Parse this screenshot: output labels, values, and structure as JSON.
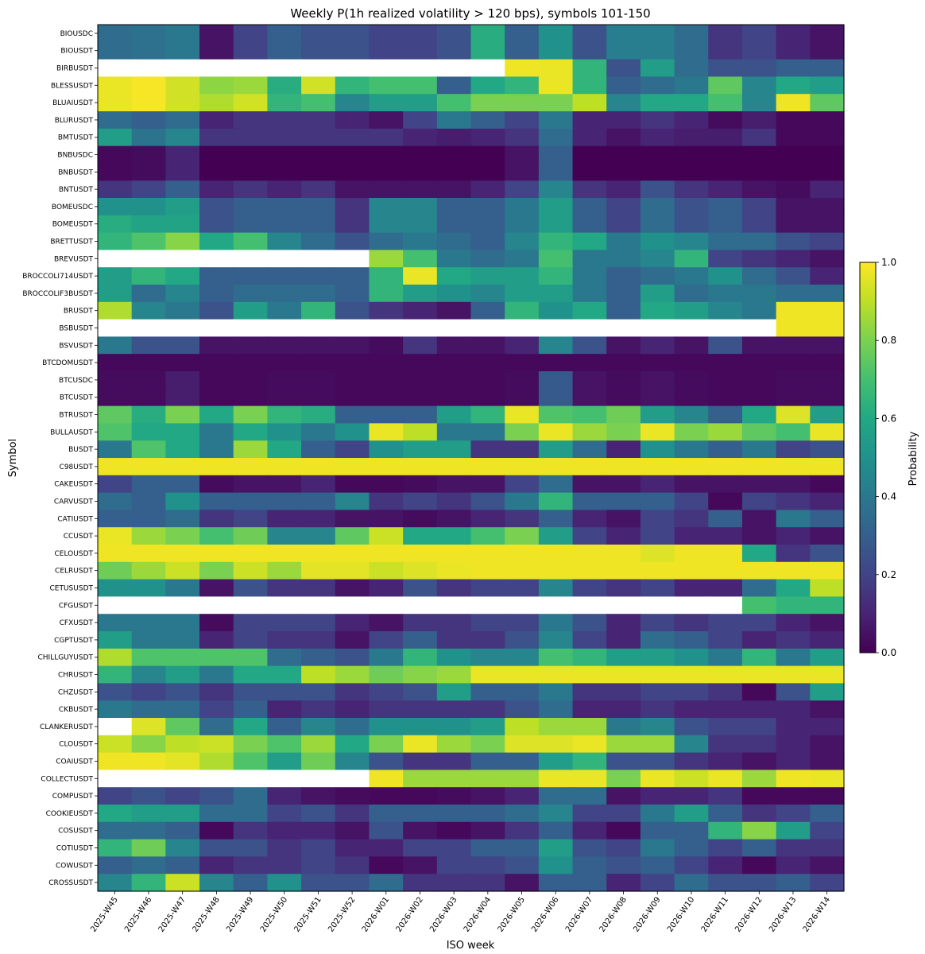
{
  "chart_data": {
    "type": "heatmap",
    "title": "Weekly P(1h realized volatility > 120 bps), symbols 101-150",
    "xlabel": "ISO week",
    "ylabel": "Symbol",
    "colorbar_label": "Probability",
    "colorbar_ticks": [
      "0.0",
      "0.2",
      "0.4",
      "0.6",
      "0.8",
      "1.0"
    ],
    "vmin": 0.0,
    "vmax": 1.0,
    "colormap": "viridis",
    "missing_color": "#ffffff",
    "x": [
      "2025-W45",
      "2025-W46",
      "2025-W47",
      "2025-W48",
      "2025-W49",
      "2025-W50",
      "2025-W51",
      "2025-W52",
      "2026-W01",
      "2026-W02",
      "2026-W03",
      "2026-W04",
      "2026-W05",
      "2026-W06",
      "2026-W07",
      "2026-W08",
      "2026-W09",
      "2026-W10",
      "2026-W11",
      "2026-W12",
      "2026-W13",
      "2026-W14"
    ],
    "y": [
      "BIOUSDC",
      "BIOUSDT",
      "BIRBUSDT",
      "BLESSUSDT",
      "BLUAIUSDT",
      "BLURUSDT",
      "BMTUSDT",
      "BNBUSDC",
      "BNBUSDT",
      "BNTUSDT",
      "BOMEUSDC",
      "BOMEUSDT",
      "BRETTUSDT",
      "BREVUSDT",
      "BROCCOLI714USDT",
      "BROCCOLIF3BUSDT",
      "BRUSDT",
      "BSBUSDT",
      "BSVUSDT",
      "BTCDOMUSDT",
      "BTCUSDC",
      "BTCUSDT",
      "BTRUSDT",
      "BULLAUSDT",
      "BUSDT",
      "C98USDT",
      "CAKEUSDT",
      "CARVUSDT",
      "CATIUSDT",
      "CCUSDT",
      "CELOUSDT",
      "CELRUSDT",
      "CETUSUSDT",
      "CFGUSDT",
      "CFXUSDT",
      "CGPTUSDT",
      "CHILLGUYUSDT",
      "CHRUSDT",
      "CHZUSDT",
      "CKBUSDT",
      "CLANKERUSDT",
      "CLOUSDT",
      "COAIUSDT",
      "COLLECTUSDT",
      "COMPUSDT",
      "COOKIEUSDT",
      "COSUSDT",
      "COTIUSDT",
      "COWUSDT",
      "CROSSUSDT"
    ],
    "values": [
      [
        0.35,
        0.37,
        0.4,
        0.05,
        0.2,
        0.3,
        0.25,
        0.25,
        0.2,
        0.2,
        0.25,
        0.62,
        0.3,
        0.5,
        0.25,
        0.42,
        0.42,
        0.35,
        0.15,
        0.2,
        0.1,
        0.05
      ],
      [
        0.35,
        0.37,
        0.4,
        0.05,
        0.2,
        0.3,
        0.25,
        0.25,
        0.2,
        0.2,
        0.25,
        0.62,
        0.3,
        0.5,
        0.25,
        0.42,
        0.42,
        0.35,
        0.15,
        0.2,
        0.1,
        0.05
      ],
      [
        null,
        null,
        null,
        null,
        null,
        null,
        null,
        null,
        null,
        null,
        null,
        null,
        0.98,
        0.97,
        0.65,
        0.25,
        0.55,
        0.35,
        0.25,
        0.25,
        0.3,
        0.3
      ],
      [
        0.97,
        0.99,
        0.93,
        0.83,
        0.85,
        0.62,
        0.93,
        0.65,
        0.7,
        0.7,
        0.3,
        0.6,
        0.65,
        0.97,
        0.65,
        0.3,
        0.35,
        0.4,
        0.75,
        0.45,
        0.6,
        0.55
      ],
      [
        0.97,
        0.99,
        0.93,
        0.88,
        0.93,
        0.65,
        0.7,
        0.45,
        0.55,
        0.55,
        0.7,
        0.8,
        0.8,
        0.8,
        0.9,
        0.45,
        0.6,
        0.6,
        0.7,
        0.45,
        0.98,
        0.75
      ],
      [
        0.35,
        0.3,
        0.35,
        0.1,
        0.15,
        0.15,
        0.15,
        0.1,
        0.05,
        0.2,
        0.4,
        0.3,
        0.2,
        0.4,
        0.1,
        0.1,
        0.15,
        0.1,
        0.03,
        0.08,
        0.02,
        0.02
      ],
      [
        0.55,
        0.38,
        0.45,
        0.15,
        0.15,
        0.15,
        0.15,
        0.15,
        0.15,
        0.1,
        0.08,
        0.1,
        0.15,
        0.35,
        0.1,
        0.05,
        0.1,
        0.08,
        0.08,
        0.15,
        0.02,
        0.02
      ],
      [
        0.02,
        0.03,
        0.1,
        0.0,
        0.0,
        0.0,
        0.0,
        0.0,
        0.0,
        0.0,
        0.0,
        0.0,
        0.05,
        0.3,
        0.0,
        0.0,
        0.0,
        0.0,
        0.0,
        0.0,
        0.0,
        0.0
      ],
      [
        0.02,
        0.03,
        0.1,
        0.0,
        0.0,
        0.0,
        0.0,
        0.0,
        0.0,
        0.0,
        0.0,
        0.0,
        0.05,
        0.3,
        0.0,
        0.0,
        0.0,
        0.0,
        0.0,
        0.0,
        0.0,
        0.0
      ],
      [
        0.15,
        0.2,
        0.3,
        0.1,
        0.15,
        0.1,
        0.15,
        0.05,
        0.05,
        0.05,
        0.05,
        0.1,
        0.2,
        0.45,
        0.15,
        0.1,
        0.25,
        0.15,
        0.1,
        0.05,
        0.03,
        0.1
      ],
      [
        0.5,
        0.5,
        0.55,
        0.25,
        0.3,
        0.3,
        0.3,
        0.15,
        0.45,
        0.45,
        0.3,
        0.3,
        0.4,
        0.55,
        0.3,
        0.2,
        0.35,
        0.25,
        0.3,
        0.2,
        0.05,
        0.05
      ],
      [
        0.62,
        0.58,
        0.58,
        0.25,
        0.3,
        0.3,
        0.3,
        0.15,
        0.45,
        0.45,
        0.3,
        0.3,
        0.4,
        0.55,
        0.3,
        0.2,
        0.35,
        0.25,
        0.3,
        0.2,
        0.05,
        0.05
      ],
      [
        0.65,
        0.72,
        0.82,
        0.6,
        0.7,
        0.45,
        0.35,
        0.25,
        0.35,
        0.4,
        0.35,
        0.3,
        0.45,
        0.65,
        0.6,
        0.4,
        0.5,
        0.45,
        0.35,
        0.35,
        0.25,
        0.2
      ],
      [
        null,
        null,
        null,
        null,
        null,
        null,
        null,
        null,
        0.85,
        0.7,
        0.4,
        0.35,
        0.4,
        0.7,
        0.4,
        0.4,
        0.45,
        0.65,
        0.2,
        0.15,
        0.1,
        0.05
      ],
      [
        0.55,
        0.65,
        0.6,
        0.3,
        0.3,
        0.3,
        0.3,
        0.3,
        0.65,
        0.97,
        0.6,
        0.55,
        0.55,
        0.65,
        0.4,
        0.3,
        0.35,
        0.4,
        0.5,
        0.35,
        0.25,
        0.1
      ],
      [
        0.55,
        0.35,
        0.45,
        0.3,
        0.35,
        0.35,
        0.35,
        0.3,
        0.65,
        0.55,
        0.5,
        0.45,
        0.55,
        0.55,
        0.4,
        0.3,
        0.55,
        0.35,
        0.4,
        0.4,
        0.35,
        0.35
      ],
      [
        0.88,
        0.45,
        0.4,
        0.25,
        0.55,
        0.4,
        0.65,
        0.25,
        0.15,
        0.1,
        0.05,
        0.3,
        0.65,
        0.5,
        0.6,
        0.3,
        0.6,
        0.55,
        0.45,
        0.4,
        0.98,
        0.98
      ],
      [
        null,
        null,
        null,
        null,
        null,
        null,
        null,
        null,
        null,
        null,
        null,
        null,
        null,
        null,
        null,
        null,
        null,
        null,
        null,
        null,
        0.98,
        0.98
      ],
      [
        0.4,
        0.25,
        0.25,
        0.05,
        0.05,
        0.05,
        0.05,
        0.05,
        0.03,
        0.15,
        0.05,
        0.05,
        0.1,
        0.45,
        0.25,
        0.05,
        0.1,
        0.05,
        0.25,
        0.05,
        0.05,
        0.05
      ],
      [
        0.02,
        0.02,
        0.02,
        0.02,
        0.02,
        0.02,
        0.02,
        0.02,
        0.02,
        0.02,
        0.02,
        0.02,
        0.02,
        0.02,
        0.02,
        0.02,
        0.02,
        0.02,
        0.02,
        0.02,
        0.02,
        0.02
      ],
      [
        0.03,
        0.03,
        0.08,
        0.02,
        0.02,
        0.03,
        0.03,
        0.02,
        0.02,
        0.02,
        0.02,
        0.02,
        0.03,
        0.28,
        0.05,
        0.03,
        0.05,
        0.03,
        0.02,
        0.02,
        0.03,
        0.03
      ],
      [
        0.03,
        0.03,
        0.08,
        0.02,
        0.02,
        0.03,
        0.03,
        0.02,
        0.02,
        0.02,
        0.02,
        0.02,
        0.03,
        0.28,
        0.05,
        0.03,
        0.05,
        0.03,
        0.02,
        0.02,
        0.03,
        0.03
      ],
      [
        0.75,
        0.62,
        0.8,
        0.6,
        0.8,
        0.65,
        0.62,
        0.3,
        0.3,
        0.3,
        0.55,
        0.65,
        0.97,
        0.72,
        0.7,
        0.78,
        0.55,
        0.45,
        0.3,
        0.6,
        0.95,
        0.55
      ],
      [
        0.72,
        0.6,
        0.6,
        0.4,
        0.6,
        0.5,
        0.4,
        0.5,
        0.97,
        0.9,
        0.4,
        0.4,
        0.8,
        0.97,
        0.85,
        0.8,
        0.97,
        0.8,
        0.85,
        0.75,
        0.7,
        0.97
      ],
      [
        0.4,
        0.72,
        0.6,
        0.4,
        0.85,
        0.6,
        0.3,
        0.2,
        0.5,
        0.55,
        0.55,
        0.15,
        0.15,
        0.55,
        0.35,
        0.1,
        0.5,
        0.4,
        0.3,
        0.4,
        0.2,
        0.25
      ],
      [
        0.98,
        0.98,
        0.98,
        0.98,
        0.98,
        0.98,
        0.98,
        0.98,
        0.98,
        0.98,
        0.98,
        0.98,
        0.98,
        0.98,
        0.98,
        0.98,
        0.98,
        0.98,
        0.98,
        0.98,
        0.98,
        0.98
      ],
      [
        0.2,
        0.3,
        0.3,
        0.03,
        0.05,
        0.05,
        0.1,
        0.02,
        0.02,
        0.03,
        0.05,
        0.05,
        0.2,
        0.35,
        0.05,
        0.05,
        0.1,
        0.05,
        0.05,
        0.05,
        0.05,
        0.02
      ],
      [
        0.35,
        0.3,
        0.5,
        0.3,
        0.3,
        0.3,
        0.3,
        0.45,
        0.15,
        0.2,
        0.15,
        0.25,
        0.4,
        0.65,
        0.3,
        0.3,
        0.3,
        0.2,
        0.02,
        0.2,
        0.15,
        0.1
      ],
      [
        0.3,
        0.3,
        0.35,
        0.15,
        0.2,
        0.1,
        0.1,
        0.05,
        0.05,
        0.03,
        0.05,
        0.1,
        0.15,
        0.3,
        0.1,
        0.05,
        0.2,
        0.15,
        0.3,
        0.05,
        0.4,
        0.3
      ],
      [
        0.97,
        0.85,
        0.8,
        0.7,
        0.78,
        0.45,
        0.45,
        0.75,
        0.92,
        0.6,
        0.6,
        0.7,
        0.8,
        0.55,
        0.2,
        0.1,
        0.2,
        0.1,
        0.1,
        0.05,
        0.1,
        0.05
      ],
      [
        0.98,
        0.98,
        0.98,
        0.98,
        0.98,
        0.98,
        0.98,
        0.98,
        0.98,
        0.98,
        0.98,
        0.98,
        0.98,
        0.98,
        0.98,
        0.98,
        0.95,
        0.98,
        0.98,
        0.6,
        0.15,
        0.25
      ],
      [
        0.78,
        0.85,
        0.92,
        0.8,
        0.92,
        0.85,
        0.96,
        0.96,
        0.92,
        0.95,
        0.97,
        0.98,
        0.98,
        0.98,
        0.98,
        0.98,
        0.98,
        0.98,
        0.98,
        0.98,
        0.98,
        0.98
      ],
      [
        0.5,
        0.5,
        0.4,
        0.05,
        0.25,
        0.15,
        0.15,
        0.05,
        0.1,
        0.25,
        0.15,
        0.2,
        0.2,
        0.45,
        0.2,
        0.15,
        0.2,
        0.1,
        0.1,
        0.35,
        0.6,
        0.9
      ],
      [
        null,
        null,
        null,
        null,
        null,
        null,
        null,
        null,
        null,
        null,
        null,
        null,
        null,
        null,
        null,
        null,
        null,
        null,
        null,
        0.7,
        0.65,
        0.65
      ],
      [
        0.4,
        0.4,
        0.4,
        0.03,
        0.2,
        0.2,
        0.2,
        0.1,
        0.05,
        0.15,
        0.15,
        0.2,
        0.2,
        0.4,
        0.25,
        0.1,
        0.2,
        0.15,
        0.2,
        0.2,
        0.1,
        0.05
      ],
      [
        0.55,
        0.4,
        0.4,
        0.1,
        0.2,
        0.15,
        0.15,
        0.05,
        0.2,
        0.3,
        0.15,
        0.15,
        0.25,
        0.45,
        0.2,
        0.1,
        0.35,
        0.3,
        0.2,
        0.1,
        0.15,
        0.1
      ],
      [
        0.88,
        0.72,
        0.72,
        0.72,
        0.72,
        0.35,
        0.3,
        0.25,
        0.4,
        0.65,
        0.5,
        0.45,
        0.45,
        0.7,
        0.65,
        0.55,
        0.55,
        0.5,
        0.4,
        0.65,
        0.4,
        0.55
      ],
      [
        0.65,
        0.45,
        0.55,
        0.4,
        0.6,
        0.6,
        0.9,
        0.85,
        0.78,
        0.82,
        0.85,
        0.97,
        0.97,
        0.97,
        0.97,
        0.97,
        0.97,
        0.97,
        0.97,
        0.97,
        0.97,
        0.97
      ],
      [
        0.25,
        0.2,
        0.25,
        0.15,
        0.25,
        0.25,
        0.25,
        0.15,
        0.2,
        0.25,
        0.55,
        0.3,
        0.3,
        0.4,
        0.15,
        0.15,
        0.2,
        0.2,
        0.15,
        0.02,
        0.25,
        0.55
      ],
      [
        0.4,
        0.35,
        0.35,
        0.2,
        0.3,
        0.1,
        0.15,
        0.1,
        0.15,
        0.15,
        0.15,
        0.15,
        0.25,
        0.35,
        0.1,
        0.1,
        0.15,
        0.1,
        0.1,
        0.1,
        0.1,
        0.05
      ],
      [
        null,
        0.95,
        0.75,
        0.35,
        0.6,
        0.3,
        0.45,
        0.35,
        0.5,
        0.5,
        0.5,
        0.55,
        0.9,
        0.85,
        0.85,
        0.4,
        0.45,
        0.25,
        0.2,
        0.2,
        0.1,
        0.1
      ],
      [
        0.92,
        0.82,
        0.9,
        0.92,
        0.8,
        0.72,
        0.85,
        0.6,
        0.8,
        0.97,
        0.85,
        0.8,
        0.95,
        0.95,
        0.97,
        0.85,
        0.85,
        0.45,
        0.15,
        0.15,
        0.1,
        0.05
      ],
      [
        0.98,
        0.98,
        0.96,
        0.88,
        0.72,
        0.55,
        0.78,
        0.45,
        0.25,
        0.15,
        0.15,
        0.3,
        0.3,
        0.55,
        0.65,
        0.25,
        0.25,
        0.15,
        0.1,
        0.05,
        0.1,
        0.05
      ],
      [
        null,
        null,
        null,
        null,
        null,
        null,
        null,
        null,
        0.98,
        0.85,
        0.85,
        0.85,
        0.85,
        0.97,
        0.97,
        0.8,
        0.97,
        0.92,
        0.97,
        0.85,
        0.98,
        0.97
      ],
      [
        0.2,
        0.25,
        0.2,
        0.25,
        0.35,
        0.1,
        0.05,
        0.03,
        0.02,
        0.02,
        0.03,
        0.05,
        0.1,
        0.35,
        0.35,
        0.05,
        0.1,
        0.1,
        0.15,
        0.02,
        0.02,
        0.02
      ],
      [
        0.6,
        0.55,
        0.55,
        0.35,
        0.35,
        0.2,
        0.25,
        0.15,
        0.3,
        0.3,
        0.3,
        0.3,
        0.35,
        0.45,
        0.2,
        0.2,
        0.4,
        0.55,
        0.3,
        0.15,
        0.2,
        0.3
      ],
      [
        0.35,
        0.35,
        0.3,
        0.02,
        0.15,
        0.1,
        0.1,
        0.05,
        0.25,
        0.05,
        0.02,
        0.05,
        0.15,
        0.3,
        0.1,
        0.02,
        0.3,
        0.3,
        0.65,
        0.82,
        0.55,
        0.2
      ],
      [
        0.65,
        0.78,
        0.45,
        0.25,
        0.25,
        0.15,
        0.2,
        0.1,
        0.1,
        0.2,
        0.2,
        0.3,
        0.3,
        0.55,
        0.25,
        0.2,
        0.4,
        0.3,
        0.2,
        0.3,
        0.15,
        0.15
      ],
      [
        0.3,
        0.35,
        0.3,
        0.1,
        0.15,
        0.15,
        0.2,
        0.15,
        0.02,
        0.05,
        0.2,
        0.2,
        0.25,
        0.5,
        0.3,
        0.25,
        0.3,
        0.2,
        0.1,
        0.02,
        0.1,
        0.05
      ],
      [
        0.45,
        0.65,
        0.92,
        0.45,
        0.3,
        0.5,
        0.25,
        0.25,
        0.35,
        0.15,
        0.15,
        0.15,
        0.05,
        0.3,
        0.3,
        0.1,
        0.2,
        0.35,
        0.25,
        0.25,
        0.3,
        0.2
      ]
    ]
  }
}
